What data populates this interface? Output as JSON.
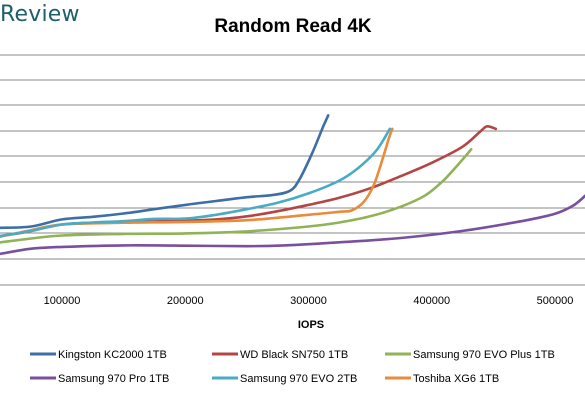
{
  "brand": {
    "logo_text": "Review"
  },
  "chart_data": {
    "type": "line",
    "title": "Random Read 4K",
    "xlabel": "IOPS",
    "ylabel": "",
    "xlim": [
      50000,
      525000
    ],
    "x_ticks": [
      100000,
      200000,
      300000,
      400000,
      500000
    ],
    "x_tick_labels": [
      "100000",
      "200000",
      "300000",
      "400000",
      "500000"
    ],
    "grid": "horizontal",
    "legend_position": "bottom",
    "series": [
      {
        "name": "Kingston KC2000 1TB",
        "color": "#3d6ea6",
        "points": [
          [
            50000,
            0.87
          ],
          [
            75000,
            0.92
          ],
          [
            100000,
            1.2
          ],
          [
            125000,
            1.3
          ],
          [
            150000,
            1.43
          ],
          [
            175000,
            1.6
          ],
          [
            200000,
            1.77
          ],
          [
            225000,
            1.92
          ],
          [
            250000,
            2.07
          ],
          [
            270000,
            2.15
          ],
          [
            285000,
            2.32
          ],
          [
            293000,
            2.8
          ],
          [
            303000,
            3.8
          ],
          [
            312000,
            4.85
          ],
          [
            316000,
            5.28
          ]
        ]
      },
      {
        "name": "WD Black SN750 1TB",
        "color": "#b54543",
        "points": [
          [
            50000,
            0.55
          ],
          [
            70000,
            0.7
          ],
          [
            100000,
            1.0
          ],
          [
            125000,
            1.06
          ],
          [
            150000,
            1.08
          ],
          [
            175000,
            1.12
          ],
          [
            200000,
            1.15
          ],
          [
            225000,
            1.2
          ],
          [
            250000,
            1.32
          ],
          [
            275000,
            1.52
          ],
          [
            300000,
            1.77
          ],
          [
            325000,
            2.05
          ],
          [
            350000,
            2.42
          ],
          [
            375000,
            2.9
          ],
          [
            400000,
            3.42
          ],
          [
            425000,
            4.05
          ],
          [
            440000,
            4.68
          ],
          [
            445000,
            4.85
          ],
          [
            452000,
            4.75
          ]
        ]
      },
      {
        "name": "Samsung 970 EVO Plus 1TB",
        "color": "#8fb356",
        "points": [
          [
            50000,
            0.3
          ],
          [
            75000,
            0.45
          ],
          [
            100000,
            0.57
          ],
          [
            150000,
            0.63
          ],
          [
            200000,
            0.65
          ],
          [
            250000,
            0.73
          ],
          [
            300000,
            0.92
          ],
          [
            325000,
            1.08
          ],
          [
            350000,
            1.32
          ],
          [
            375000,
            1.7
          ],
          [
            395000,
            2.15
          ],
          [
            410000,
            2.75
          ],
          [
            425000,
            3.55
          ],
          [
            432000,
            3.95
          ]
        ]
      },
      {
        "name": "Samsung 970 Pro 1TB",
        "color": "#7a4f9e",
        "points": [
          [
            50000,
            -0.15
          ],
          [
            75000,
            0.05
          ],
          [
            100000,
            0.12
          ],
          [
            150000,
            0.18
          ],
          [
            200000,
            0.17
          ],
          [
            250000,
            0.15
          ],
          [
            280000,
            0.18
          ],
          [
            325000,
            0.3
          ],
          [
            375000,
            0.47
          ],
          [
            425000,
            0.75
          ],
          [
            475000,
            1.15
          ],
          [
            500000,
            1.42
          ],
          [
            515000,
            1.75
          ],
          [
            525000,
            2.15
          ]
        ]
      },
      {
        "name": "Samsung 970 EVO 2TB",
        "color": "#4aabc4",
        "points": [
          [
            50000,
            0.55
          ],
          [
            75000,
            0.75
          ],
          [
            100000,
            1.0
          ],
          [
            125000,
            1.08
          ],
          [
            150000,
            1.13
          ],
          [
            175000,
            1.22
          ],
          [
            200000,
            1.23
          ],
          [
            225000,
            1.38
          ],
          [
            250000,
            1.6
          ],
          [
            275000,
            1.85
          ],
          [
            300000,
            2.22
          ],
          [
            325000,
            2.72
          ],
          [
            340000,
            3.2
          ],
          [
            355000,
            3.9
          ],
          [
            366000,
            4.75
          ]
        ]
      },
      {
        "name": "Toshiba XG6 1TB",
        "color": "#e88b3a",
        "points": [
          [
            50000,
            0.52
          ],
          [
            75000,
            0.78
          ],
          [
            100000,
            1.0
          ],
          [
            150000,
            1.07
          ],
          [
            200000,
            1.1
          ],
          [
            250000,
            1.17
          ],
          [
            300000,
            1.38
          ],
          [
            325000,
            1.5
          ],
          [
            335000,
            1.55
          ],
          [
            345000,
            1.9
          ],
          [
            353000,
            2.55
          ],
          [
            360000,
            3.55
          ],
          [
            365000,
            4.35
          ],
          [
            368000,
            4.75
          ]
        ]
      }
    ]
  }
}
